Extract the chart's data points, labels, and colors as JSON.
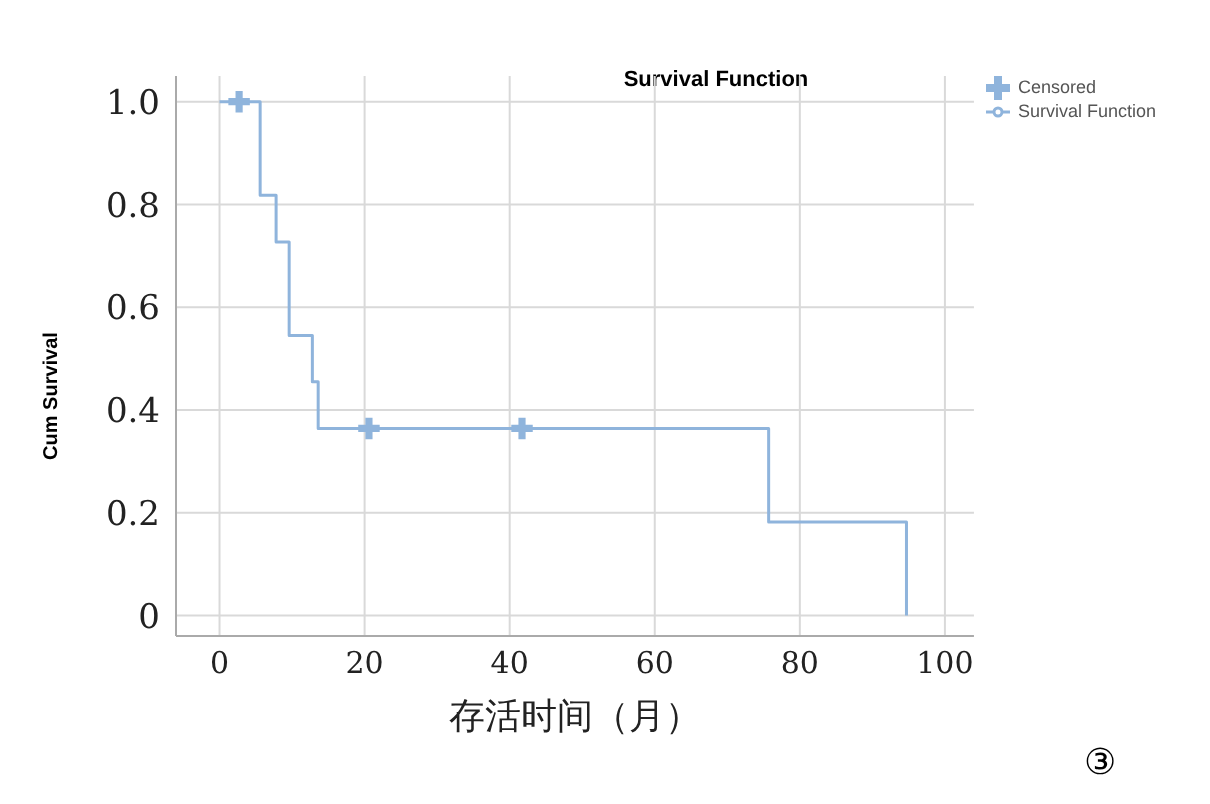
{
  "chart_data": {
    "type": "step",
    "title": "Survival Function",
    "xlabel": "存活时间（月）",
    "ylabel": "Cum Survival",
    "annotations": [
      "③"
    ],
    "series": [
      {
        "name": "Survival Function",
        "color": "#8fb4dc",
        "x": [
          0,
          5.6,
          7.8,
          9.6,
          12.8,
          13.6,
          75.7,
          94.7
        ],
        "values": [
          1,
          0.818,
          0.727,
          0.545,
          0.455,
          0.364,
          0.182,
          0
        ]
      },
      {
        "name": "Censored",
        "type": "scatter",
        "marker": "cross",
        "color": "#8fb4dc",
        "x": [
          2.7,
          20.6,
          41.7
        ],
        "values": [
          1,
          0.364,
          0.364
        ]
      }
    ],
    "xlim": [
      -6,
      104
    ],
    "xticks": [
      0,
      20,
      40,
      60,
      80,
      100
    ],
    "ylim": [
      -0.04,
      1.05
    ],
    "yticks": [
      {
        "value": 0,
        "label": "0"
      },
      {
        "value": 0.2,
        "label": "0.2"
      },
      {
        "value": 0.4,
        "label": "0.4"
      },
      {
        "value": 0.6,
        "label": "0.6"
      },
      {
        "value": 0.8,
        "label": "0.8"
      },
      {
        "value": 1,
        "label": "1.0"
      }
    ],
    "grid": true,
    "legend": "top right"
  }
}
